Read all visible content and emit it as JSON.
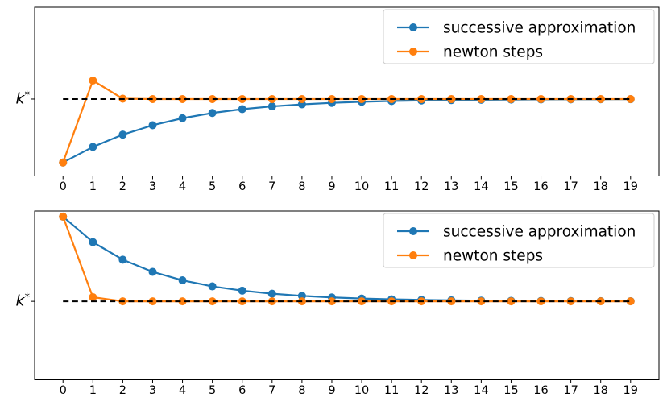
{
  "figure": {
    "background": "#ffffff",
    "axes_color": "#000000"
  },
  "chart_data": [
    {
      "type": "line",
      "title": "",
      "xlabel": "",
      "ylabel": "",
      "x": [
        0,
        1,
        2,
        3,
        4,
        5,
        6,
        7,
        8,
        9,
        10,
        11,
        12,
        13,
        14,
        15,
        16,
        17,
        18,
        19
      ],
      "x_tick_labels": [
        "0",
        "1",
        "2",
        "3",
        "4",
        "5",
        "6",
        "7",
        "8",
        "9",
        "10",
        "11",
        "12",
        "13",
        "14",
        "15",
        "16",
        "17",
        "18",
        "19"
      ],
      "series": [
        {
          "name": "successive approximation",
          "color": "#1f77b4",
          "values": [
            0.8,
            1.0412,
            1.232,
            1.378,
            1.4873,
            1.5683,
            1.6277,
            1.671,
            1.7025,
            1.7254,
            1.7419,
            1.7538,
            1.7624,
            1.7687,
            1.7731,
            1.7764,
            1.7787,
            1.7804,
            1.7816,
            1.7824
          ]
        },
        {
          "name": "newton steps",
          "color": "#ff7f0e",
          "values": [
            0.8,
            2.0721,
            1.7903,
            1.7847,
            1.7847,
            1.7847,
            1.7847,
            1.7847,
            1.7847,
            1.7847,
            1.7847,
            1.7847,
            1.7847,
            1.7847,
            1.7847,
            1.7847,
            1.7847,
            1.7847,
            1.7847,
            1.7847
          ]
        }
      ],
      "reference_line": {
        "value": 1.7847,
        "label": "k*",
        "color": "#000000",
        "style": "dashed"
      },
      "y_ticks": [
        {
          "value": 1.7847,
          "label": "k*"
        }
      ],
      "xlim": [
        -0.95,
        19.95
      ],
      "ylim": [
        0.59,
        3.21
      ],
      "grid": false,
      "legend": {
        "position": "upper right",
        "entries": [
          "successive approximation",
          "newton steps"
        ]
      }
    },
    {
      "type": "line",
      "title": "",
      "xlabel": "",
      "ylabel": "",
      "x": [
        0,
        1,
        2,
        3,
        4,
        5,
        6,
        7,
        8,
        9,
        10,
        11,
        12,
        13,
        14,
        15,
        16,
        17,
        18,
        19
      ],
      "x_tick_labels": [
        "0",
        "1",
        "2",
        "3",
        "4",
        "5",
        "6",
        "7",
        "8",
        "9",
        "10",
        "11",
        "12",
        "13",
        "14",
        "15",
        "16",
        "17",
        "18",
        "19"
      ],
      "series": [
        {
          "name": "successive approximation",
          "color": "#1f77b4",
          "values": [
            3.0,
            2.6342,
            2.3829,
            2.2082,
            2.0859,
            1.9996,
            1.9384,
            1.8948,
            1.8637,
            1.8414,
            1.8255,
            1.814,
            1.8058,
            1.7999,
            1.7956,
            1.7925,
            1.7903,
            1.7887,
            1.7876,
            1.7868
          ]
        },
        {
          "name": "newton steps",
          "color": "#ff7f0e",
          "values": [
            3.0,
            1.8446,
            1.785,
            1.7847,
            1.7847,
            1.7847,
            1.7847,
            1.7847,
            1.7847,
            1.7847,
            1.7847,
            1.7847,
            1.7847,
            1.7847,
            1.7847,
            1.7847,
            1.7847,
            1.7847,
            1.7847,
            1.7847
          ]
        }
      ],
      "reference_line": {
        "value": 1.7847,
        "label": "k*",
        "color": "#000000",
        "style": "dashed"
      },
      "y_ticks": [
        {
          "value": 1.7847,
          "label": "k*"
        }
      ],
      "xlim": [
        -0.95,
        19.95
      ],
      "ylim": [
        0.66,
        3.08
      ],
      "grid": false,
      "legend": {
        "position": "upper right",
        "entries": [
          "successive approximation",
          "newton steps"
        ]
      }
    }
  ]
}
